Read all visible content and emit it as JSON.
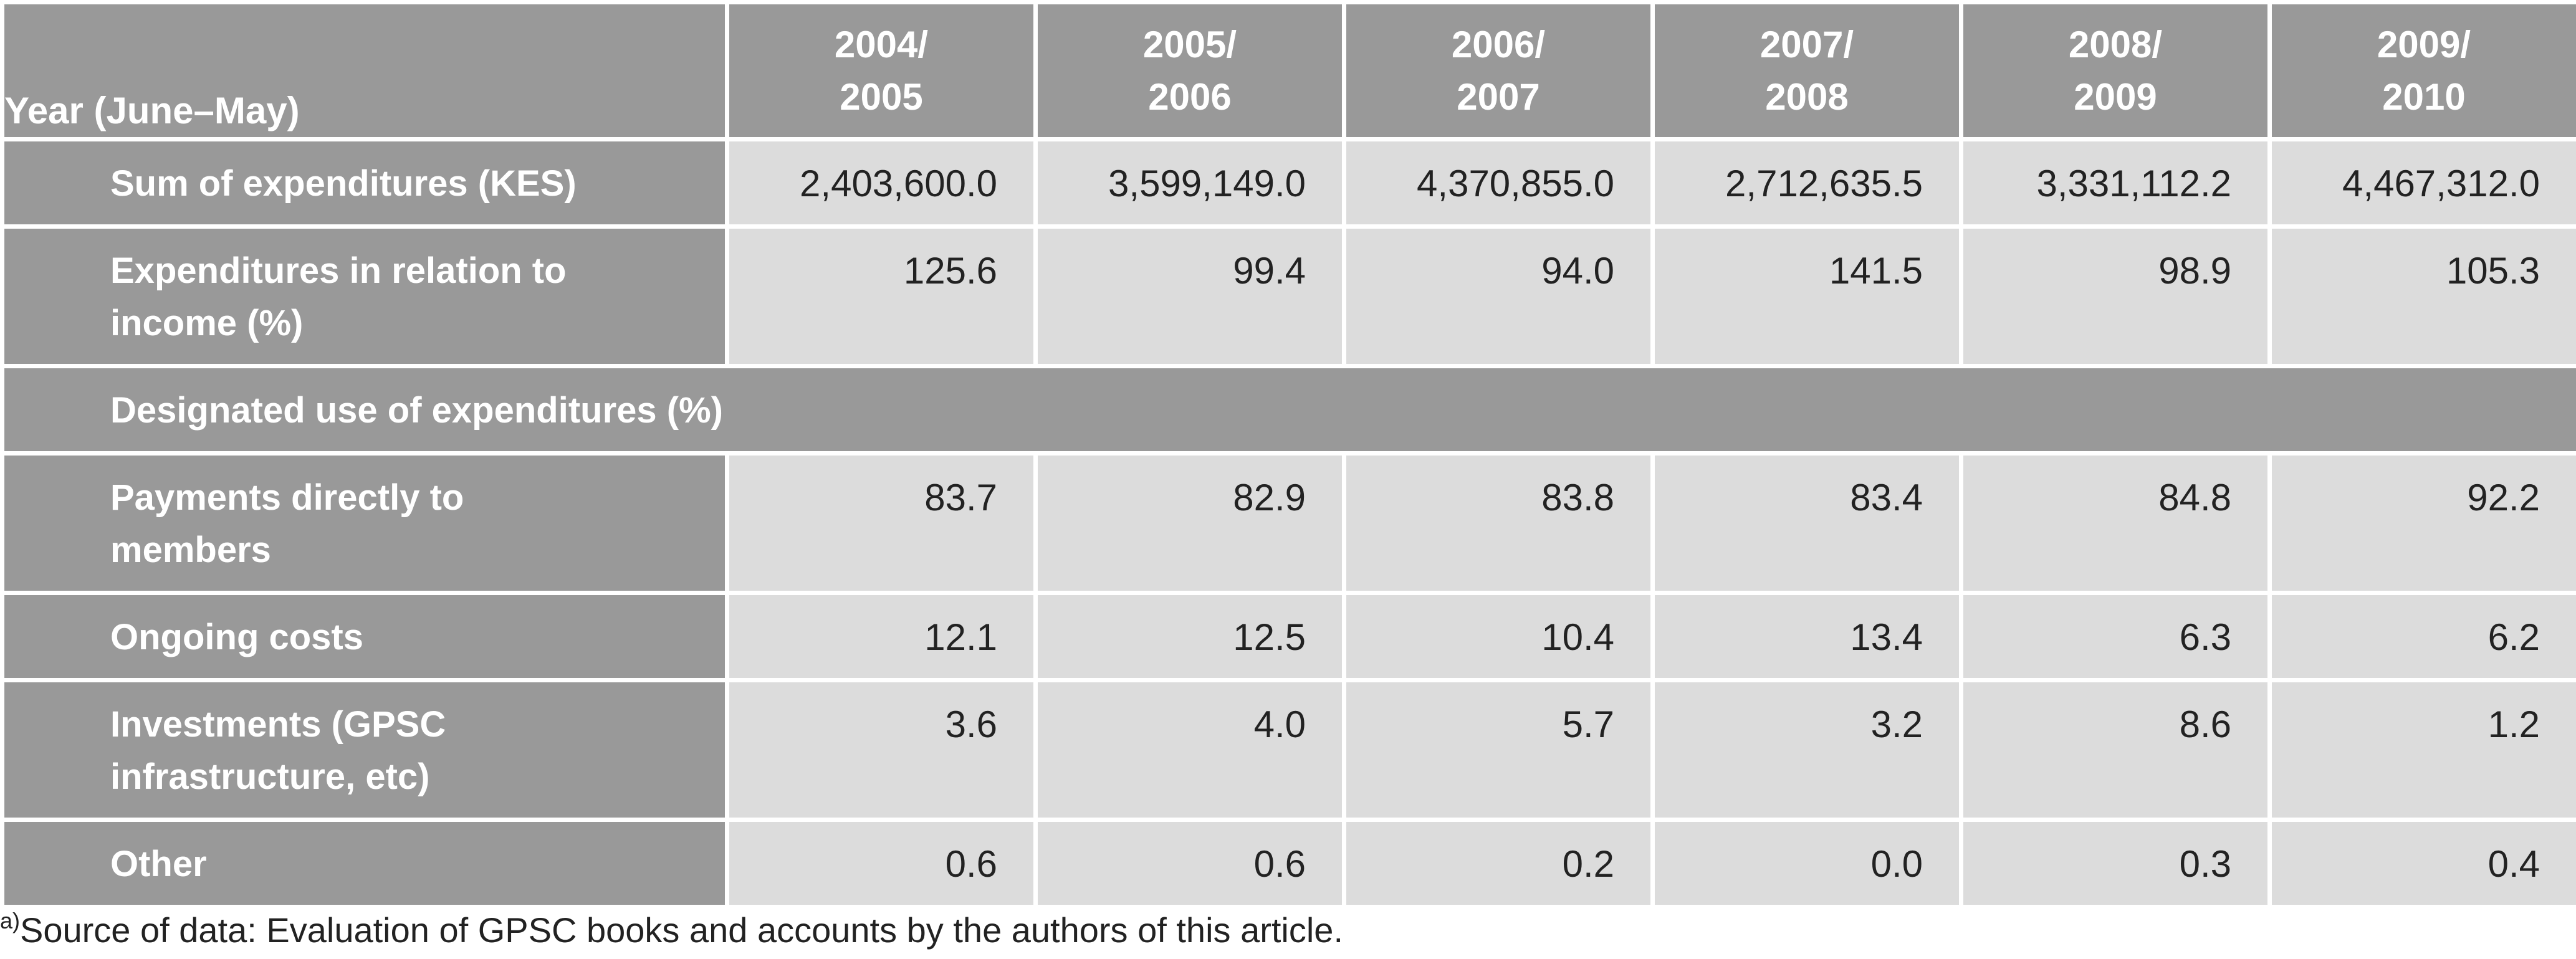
{
  "table": {
    "header": {
      "label": "Year (June–May)",
      "years": [
        [
          "2004/",
          "2005"
        ],
        [
          "2005/",
          "2006"
        ],
        [
          "2006/",
          "2007"
        ],
        [
          "2007/",
          "2008"
        ],
        [
          "2008/",
          "2009"
        ],
        [
          "2009/",
          "2010"
        ]
      ]
    },
    "rows": [
      {
        "type": "data",
        "label": [
          "Sum of expenditures (KES)"
        ],
        "values": [
          "2,403,600.0",
          "3,599,149.0",
          "4,370,855.0",
          "2,712,635.5",
          "3,331,112.2",
          "4,467,312.0"
        ]
      },
      {
        "type": "data",
        "label": [
          "Expenditures in relation to",
          "income (%)"
        ],
        "values": [
          "125.6",
          "99.4",
          "94.0",
          "141.5",
          "98.9",
          "105.3"
        ]
      },
      {
        "type": "section",
        "label": [
          "Designated use of expenditures (%)"
        ]
      },
      {
        "type": "data",
        "label": [
          "Payments directly to",
          "members"
        ],
        "values": [
          "83.7",
          "82.9",
          "83.8",
          "83.4",
          "84.8",
          "92.2"
        ]
      },
      {
        "type": "data",
        "label": [
          "Ongoing costs"
        ],
        "values": [
          "12.1",
          "12.5",
          "10.4",
          "13.4",
          "6.3",
          "6.2"
        ]
      },
      {
        "type": "data",
        "label": [
          "Investments (GPSC",
          "infrastructure, etc)"
        ],
        "values": [
          "3.6",
          "4.0",
          "5.7",
          "3.2",
          "8.6",
          "1.2"
        ]
      },
      {
        "type": "data",
        "label": [
          "Other"
        ],
        "values": [
          "0.6",
          "0.6",
          "0.2",
          "0.0",
          "0.3",
          "0.4"
        ]
      }
    ]
  },
  "footnote": {
    "marker": "a)",
    "text": "Source of data: Evaluation of GPSC books and accounts by the authors of this article."
  }
}
